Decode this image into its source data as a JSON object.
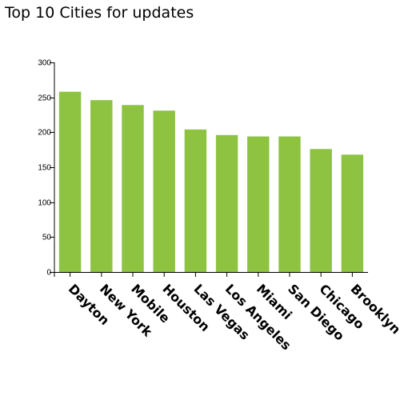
{
  "chart_data": {
    "type": "bar",
    "title": "Top 10 Cities for updates",
    "xlabel": "",
    "ylabel": "",
    "categories": [
      "Dayton",
      "New York",
      "Mobile",
      "Houston",
      "Las Vegas",
      "Los Angeles",
      "Miami",
      "San Diego",
      "Chicago",
      "Brooklyn"
    ],
    "values": [
      258,
      246,
      239,
      231,
      204,
      196,
      194,
      194,
      176,
      168
    ],
    "ylim": [
      0,
      300
    ],
    "yticks": [
      0,
      50,
      100,
      150,
      200,
      250,
      300
    ],
    "bar_color": "#8dc341",
    "grid": false,
    "legend": "none"
  }
}
